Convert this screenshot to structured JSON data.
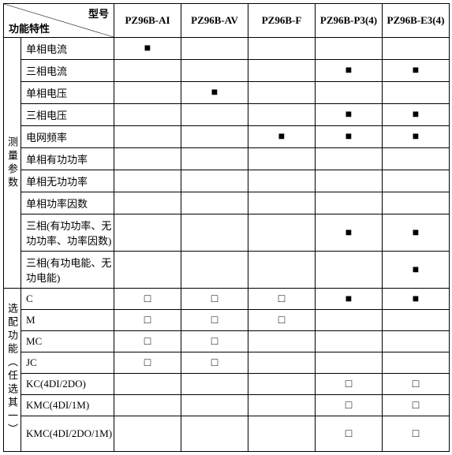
{
  "header": {
    "top_label": "型号",
    "bottom_label": "功能特性",
    "models": [
      "PZ96B-AI",
      "PZ96B-AV",
      "PZ96B-F",
      "PZ96B-P3(4)",
      "PZ96B-E3(4)"
    ]
  },
  "marks": {
    "filled": "■",
    "hollow": "□"
  },
  "groups": [
    {
      "label": "测量参数",
      "rows": [
        {
          "name": "单相电流",
          "cells": [
            "f",
            "",
            "",
            "",
            ""
          ]
        },
        {
          "name": "三相电流",
          "cells": [
            "",
            "",
            "",
            "f",
            "f"
          ]
        },
        {
          "name": "单相电压",
          "cells": [
            "",
            "f",
            "",
            "",
            ""
          ]
        },
        {
          "name": "三相电压",
          "cells": [
            "",
            "",
            "",
            "f",
            "f"
          ]
        },
        {
          "name": "电网频率",
          "cells": [
            "",
            "",
            "f",
            "f",
            "f"
          ]
        },
        {
          "name": "单相有功功率",
          "cells": [
            "",
            "",
            "",
            "",
            ""
          ]
        },
        {
          "name": "单相无功功率",
          "cells": [
            "",
            "",
            "",
            "",
            ""
          ]
        },
        {
          "name": "单相功率因数",
          "cells": [
            "",
            "",
            "",
            "",
            ""
          ]
        },
        {
          "name": "三相(有功功率、无功功率、功率因数)",
          "tall": true,
          "cells": [
            "",
            "",
            "",
            "f",
            "f"
          ]
        },
        {
          "name": "三相(有功电能、无功电能)",
          "tall": true,
          "cells": [
            "",
            "",
            "",
            "",
            "f"
          ]
        }
      ]
    },
    {
      "label": "选配功能（任选其一）",
      "rows": [
        {
          "name": "C",
          "cells": [
            "h",
            "h",
            "h",
            "f",
            "f"
          ]
        },
        {
          "name": "M",
          "cells": [
            "h",
            "h",
            "h",
            "",
            ""
          ]
        },
        {
          "name": "MC",
          "cells": [
            "h",
            "h",
            "",
            "",
            ""
          ]
        },
        {
          "name": "JC",
          "cells": [
            "h",
            "h",
            "",
            "",
            ""
          ]
        },
        {
          "name": "KC(4DI/2DO)",
          "cells": [
            "",
            "",
            "",
            "h",
            "h"
          ]
        },
        {
          "name": "KMC(4DI/1M)",
          "cells": [
            "",
            "",
            "",
            "h",
            "h"
          ]
        },
        {
          "name": "KMC(4DI/2DO/1M)",
          "tall": true,
          "cells": [
            "",
            "",
            "",
            "h",
            "h"
          ]
        }
      ]
    }
  ],
  "style": {
    "border_color": "#000000",
    "background": "#ffffff",
    "font_family": "SimSun",
    "font_size_pt": 10
  }
}
